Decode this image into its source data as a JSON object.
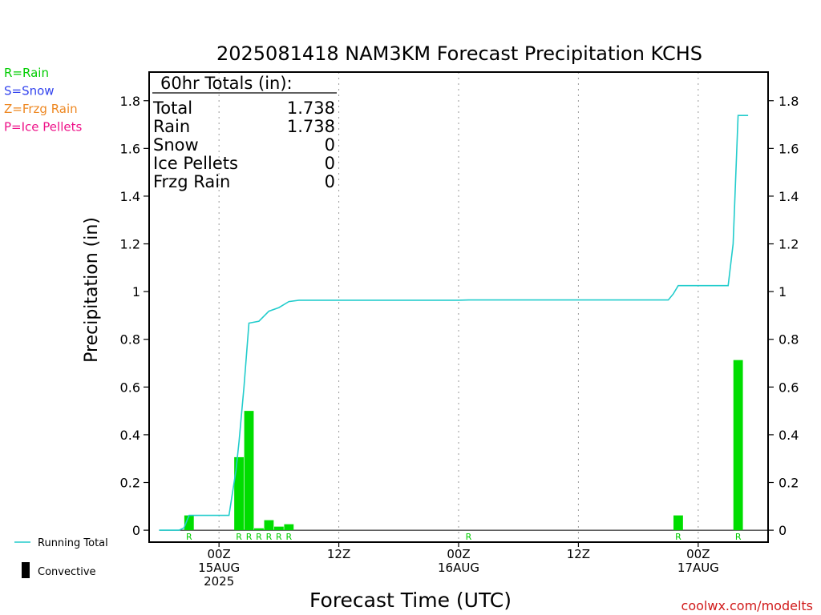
{
  "chart_data": {
    "type": "bar",
    "title": "2025081418 NAM3KM Forecast Precipitation KCHS",
    "xlabel": "Forecast Time (UTC)",
    "ylabel": "Precipitation (in)",
    "ylim": [
      -0.05,
      1.92
    ],
    "y_ticks": [
      0,
      0.2,
      0.4,
      0.6,
      0.8,
      1,
      1.2,
      1.4,
      1.6,
      1.8
    ],
    "y_tick_labels": [
      "0",
      "0.2",
      "0.4",
      "0.6",
      "0.8",
      "1",
      "1.2",
      "1.4",
      "1.6",
      "1.8"
    ],
    "x_unit": "forecast hour",
    "xlim": [
      -1,
      61
    ],
    "x_ticks": [
      {
        "hour": 6,
        "lines": [
          "00Z",
          "15AUG",
          "2025"
        ]
      },
      {
        "hour": 18,
        "lines": [
          "12Z"
        ]
      },
      {
        "hour": 30,
        "lines": [
          "00Z",
          "16AUG"
        ]
      },
      {
        "hour": 42,
        "lines": [
          "12Z"
        ]
      },
      {
        "hour": 54,
        "lines": [
          "00Z",
          "17AUG"
        ]
      }
    ],
    "grid": "vertical dotted at each 12h tick",
    "bar_series": {
      "name": "Hourly precipitation",
      "color": "#00dd00",
      "x": [
        3,
        8,
        9,
        10,
        11,
        12,
        13,
        52,
        58
      ],
      "values": [
        0.062,
        0.306,
        0.5,
        0.008,
        0.042,
        0.015,
        0.025,
        0.062,
        0.713
      ],
      "type_labels": [
        "R",
        "R",
        "R",
        "R",
        "R",
        "R",
        "R",
        "R",
        "R"
      ]
    },
    "extra_type_labels": [
      {
        "x": 31,
        "label": "R"
      }
    ],
    "line_series": {
      "name": "Running Total",
      "color": "#22cccc",
      "x": [
        0,
        2,
        2.5,
        3,
        5,
        7,
        7.7,
        8,
        8.5,
        9,
        10,
        11,
        12,
        13,
        14,
        30,
        31,
        51,
        51.5,
        52,
        53,
        55,
        57,
        57.5,
        58,
        59
      ],
      "values": [
        0,
        0,
        0.01,
        0.062,
        0.062,
        0.062,
        0.25,
        0.37,
        0.6,
        0.868,
        0.876,
        0.918,
        0.933,
        0.958,
        0.964,
        0.964,
        0.965,
        0.965,
        0.99,
        1.025,
        1.025,
        1.025,
        1.025,
        1.2,
        1.738,
        1.738
      ]
    },
    "totals_box": {
      "heading": "60hr Totals (in):",
      "rows": [
        {
          "label": "Total",
          "value": "1.738"
        },
        {
          "label": "Rain",
          "value": "1.738"
        },
        {
          "label": "Snow",
          "value": "0"
        },
        {
          "label": "Ice Pellets",
          "value": "0"
        },
        {
          "label": "Frzg Rain",
          "value": "0"
        }
      ]
    },
    "type_legend": [
      {
        "text": "R=Rain",
        "color": "#00cc00"
      },
      {
        "text": "S=Snow",
        "color": "#3344ee"
      },
      {
        "text": "Z=Frzg Rain",
        "color": "#ee8822"
      },
      {
        "text": "P=Ice Pellets",
        "color": "#ee1188"
      }
    ],
    "bottom_legend": {
      "running_total": "Running Total",
      "convective": "Convective"
    },
    "credit": "coolwx.com/modelts"
  }
}
